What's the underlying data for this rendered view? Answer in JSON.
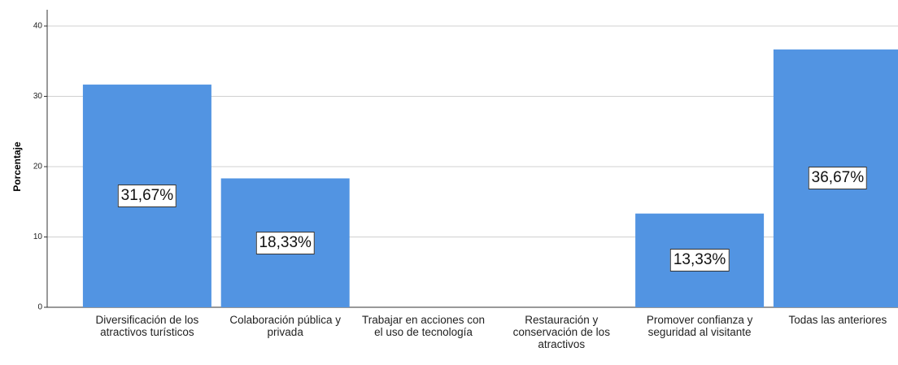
{
  "chart_data": {
    "type": "bar",
    "y_label": "Porcentaje",
    "categories": [
      "Diversificación de los atractivos turísticos",
      "Colaboración pública y privada",
      "Trabajar en acciones con el uso de tecnología",
      "Restauración y conservación de los atractivos",
      "Promover confianza y seguridad al visitante",
      "Todas las anteriores"
    ],
    "values": [
      31.67,
      18.33,
      0,
      0,
      13.33,
      36.67
    ],
    "value_labels": [
      "31,67%",
      "18,33%",
      null,
      null,
      "13,33%",
      "36,67%"
    ],
    "color": "#5294e2",
    "ylim": [
      0,
      40
    ],
    "yticks": [
      0,
      10,
      20,
      30,
      40
    ],
    "grid": true
  }
}
